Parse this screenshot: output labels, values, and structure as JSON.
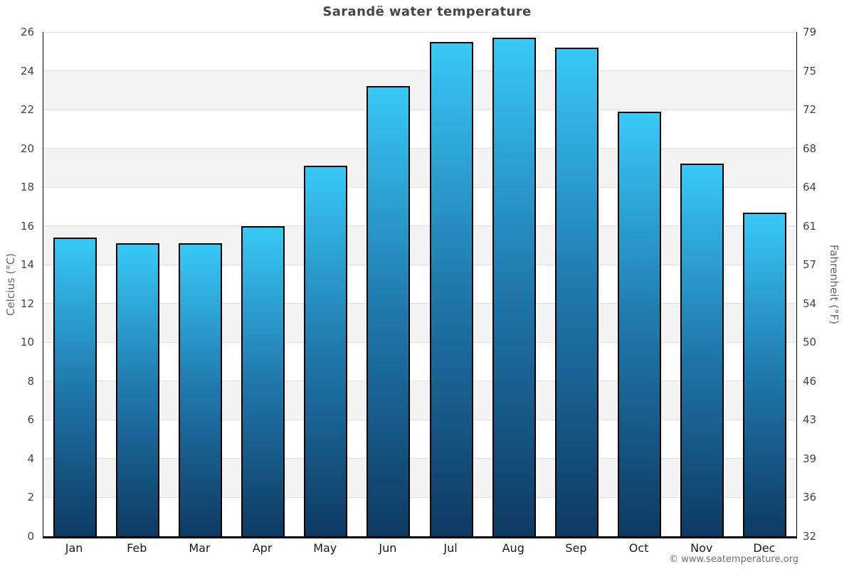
{
  "chart_data": {
    "type": "bar",
    "title": "Sarandë water temperature",
    "categories": [
      "Jan",
      "Feb",
      "Mar",
      "Apr",
      "May",
      "Jun",
      "Jul",
      "Aug",
      "Sep",
      "Oct",
      "Nov",
      "Dec"
    ],
    "values": [
      15.4,
      15.1,
      15.1,
      16.0,
      19.1,
      23.2,
      25.5,
      25.7,
      25.2,
      21.9,
      19.2,
      16.7
    ],
    "ylabel_left": "Celcius (°C)",
    "ylabel_right": "Fahrenheit (°F)",
    "ylim": [
      0,
      26
    ],
    "yticks_celsius": [
      0,
      2,
      4,
      6,
      8,
      10,
      12,
      14,
      16,
      18,
      20,
      22,
      24,
      26
    ],
    "yticks_fahrenheit": [
      32,
      36,
      39,
      43,
      46,
      50,
      54,
      57,
      61,
      64,
      68,
      72,
      75,
      79
    ],
    "grid": true,
    "legend": false,
    "background_bands": "alternating white / light-gray horizontal stripes every 2°C"
  },
  "watermark": "© www.seatemperature.org",
  "colors": {
    "bar_gradient_top": "#38c9f6",
    "bar_gradient_mid": "#1f78ac",
    "bar_gradient_bottom": "#0d3a61",
    "bar_border": "#000000",
    "band_gray": "#f3f3f3",
    "gridline": "#e0e0e0",
    "axis_line": "#000000",
    "title_text": "#464646",
    "tick_text": "#444444",
    "month_text": "#1a1a1a",
    "axis_label_text": "#666666",
    "watermark_text": "#6e6e6e"
  }
}
